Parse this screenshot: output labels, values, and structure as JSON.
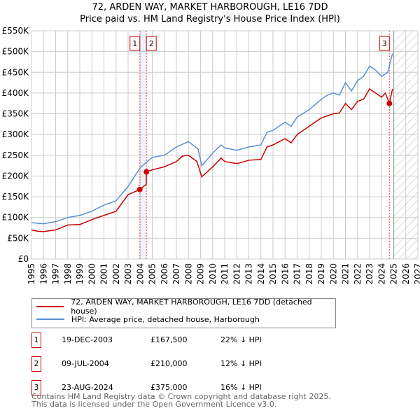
{
  "chart_data": {
    "type": "line",
    "title": "72, ARDEN WAY, MARKET HARBOROUGH, LE16 7DD",
    "subtitle": "Price paid vs. HM Land Registry's House Price Index (HPI)",
    "xlim": [
      1995,
      2027
    ],
    "ylim": [
      0,
      550000
    ],
    "y_ticks": [
      0,
      50000,
      100000,
      150000,
      200000,
      250000,
      300000,
      350000,
      400000,
      450000,
      500000,
      550000
    ],
    "y_tick_labels": [
      "£0",
      "£50K",
      "£100K",
      "£150K",
      "£200K",
      "£250K",
      "£300K",
      "£350K",
      "£400K",
      "£450K",
      "£500K",
      "£550K"
    ],
    "x_ticks": [
      1995,
      1996,
      1997,
      1998,
      1999,
      2000,
      2001,
      2002,
      2003,
      2004,
      2005,
      2006,
      2007,
      2008,
      2009,
      2010,
      2011,
      2012,
      2013,
      2014,
      2015,
      2016,
      2017,
      2018,
      2019,
      2020,
      2021,
      2022,
      2023,
      2024,
      2025,
      2026,
      2027
    ],
    "grid": true,
    "forecast_hatch_from": 2025,
    "series": [
      {
        "name": "72, ARDEN WAY, MARKET HARBOROUGH, LE16 7DD (detached house)",
        "color": "#cc0000",
        "x": [
          1995,
          1995.5,
          1996,
          1997,
          1998,
          1999,
          2000,
          2001,
          2002,
          2003,
          2003.97,
          2004.5,
          2004.52,
          2005,
          2006,
          2007,
          2007.5,
          2008,
          2008.7,
          2009.1,
          2010,
          2010.7,
          2011,
          2012,
          2013,
          2014,
          2014.5,
          2015,
          2016,
          2016.5,
          2017,
          2018,
          2019,
          2019.5,
          2020,
          2020.5,
          2021,
          2021.5,
          2022,
          2022.5,
          2023,
          2023.5,
          2024,
          2024.3,
          2024.64,
          2024.9
        ],
        "y": [
          70000,
          67000,
          66000,
          70000,
          82000,
          83000,
          95000,
          105000,
          115000,
          155000,
          167500,
          180000,
          210000,
          215000,
          222000,
          235000,
          248000,
          250000,
          235000,
          198000,
          222000,
          243000,
          235000,
          230000,
          238000,
          240000,
          270000,
          275000,
          290000,
          280000,
          300000,
          320000,
          340000,
          345000,
          350000,
          352000,
          375000,
          360000,
          380000,
          385000,
          410000,
          400000,
          390000,
          400000,
          375000,
          410000
        ]
      },
      {
        "name": "HPI: Average price, detached house, Harborough",
        "color": "#5b8fd4",
        "x": [
          1995,
          1995.5,
          1996,
          1997,
          1998,
          1999,
          2000,
          2001,
          2002,
          2003,
          2004,
          2005,
          2006,
          2007,
          2008,
          2008.8,
          2009.1,
          2010,
          2010.7,
          2011,
          2012,
          2013,
          2014,
          2014.5,
          2015,
          2016,
          2016.5,
          2017,
          2018,
          2019,
          2019.5,
          2020,
          2020.5,
          2021,
          2021.5,
          2022,
          2022.5,
          2023,
          2023.5,
          2024,
          2024.5,
          2024.9
        ],
        "y": [
          88000,
          86000,
          85000,
          90000,
          100000,
          105000,
          115000,
          130000,
          140000,
          175000,
          220000,
          245000,
          250000,
          270000,
          283000,
          265000,
          225000,
          255000,
          275000,
          268000,
          262000,
          270000,
          275000,
          305000,
          310000,
          330000,
          320000,
          342000,
          360000,
          385000,
          395000,
          400000,
          395000,
          425000,
          405000,
          430000,
          440000,
          465000,
          455000,
          440000,
          450000,
          495000
        ]
      }
    ],
    "sales": [
      {
        "n": "1",
        "x": 2003.97,
        "y": 167500,
        "date": "19-DEC-2003",
        "price": "£167,500",
        "hpi": "22% ↓ HPI"
      },
      {
        "n": "2",
        "x": 2004.52,
        "y": 210000,
        "date": "09-JUL-2004",
        "price": "£210,000",
        "hpi": "12% ↓ HPI"
      },
      {
        "n": "3",
        "x": 2024.64,
        "y": 375000,
        "date": "23-AUG-2024",
        "price": "£375,000",
        "hpi": "16% ↓ HPI"
      }
    ]
  },
  "footer": {
    "line1": "Contains HM Land Registry data © Crown copyright and database right 2025.",
    "line2": "This data is licensed under the Open Government Licence v3.0."
  }
}
